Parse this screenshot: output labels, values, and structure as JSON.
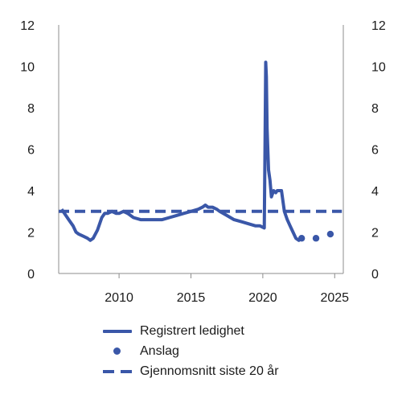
{
  "chart_data": {
    "type": "line",
    "title": "",
    "xlabel": "",
    "ylabel": "",
    "xlim": [
      2005.8,
      2025.6
    ],
    "ylim": [
      0,
      12
    ],
    "y_ticks": [
      "0",
      "2",
      "4",
      "6",
      "8",
      "10",
      "12"
    ],
    "x_ticks": [
      "2010",
      "2015",
      "2020",
      "2025"
    ],
    "grid": false,
    "legend_position": "bottom",
    "colors": {
      "series": "#3a57a8",
      "axis": "#8c8c8c"
    },
    "series": [
      {
        "name": "Registrert ledighet",
        "style": "solid",
        "x": [
          2006.0,
          2006.2,
          2006.5,
          2006.8,
          2007.0,
          2007.2,
          2007.5,
          2007.8,
          2008.0,
          2008.2,
          2008.5,
          2008.8,
          2009.0,
          2009.2,
          2009.5,
          2009.8,
          2010.0,
          2010.3,
          2010.6,
          2011.0,
          2011.5,
          2012.0,
          2012.5,
          2013.0,
          2013.5,
          2014.0,
          2014.5,
          2015.0,
          2015.5,
          2015.8,
          2016.0,
          2016.2,
          2016.5,
          2016.8,
          2017.0,
          2017.5,
          2018.0,
          2018.5,
          2019.0,
          2019.5,
          2019.8,
          2020.1,
          2020.15,
          2020.2,
          2020.25,
          2020.3,
          2020.4,
          2020.5,
          2020.6,
          2020.75,
          2020.9,
          2021.0,
          2021.15,
          2021.3,
          2021.5,
          2021.7,
          2021.9,
          2022.1,
          2022.3,
          2022.5,
          2022.6
        ],
        "y": [
          3.1,
          2.9,
          2.6,
          2.3,
          2.0,
          1.9,
          1.8,
          1.7,
          1.6,
          1.7,
          2.1,
          2.7,
          2.9,
          2.9,
          3.0,
          2.9,
          2.9,
          3.0,
          2.9,
          2.7,
          2.6,
          2.6,
          2.6,
          2.6,
          2.7,
          2.8,
          2.9,
          3.0,
          3.1,
          3.2,
          3.3,
          3.2,
          3.2,
          3.1,
          3.0,
          2.8,
          2.6,
          2.5,
          2.4,
          2.3,
          2.3,
          2.2,
          6.0,
          10.2,
          9.5,
          7.0,
          5.0,
          4.5,
          3.7,
          4.0,
          3.9,
          4.0,
          4.0,
          4.0,
          3.0,
          2.6,
          2.3,
          2.0,
          1.7,
          1.6,
          1.7
        ]
      },
      {
        "name": "Anslag",
        "style": "dots",
        "x": [
          2022.7,
          2023.7,
          2024.7
        ],
        "y": [
          1.7,
          1.7,
          1.9
        ]
      },
      {
        "name": "Gjennomsnitt siste 20 år",
        "style": "dashed",
        "x": [
          2005.8,
          2025.5
        ],
        "y": [
          3.0,
          3.0
        ]
      }
    ]
  }
}
